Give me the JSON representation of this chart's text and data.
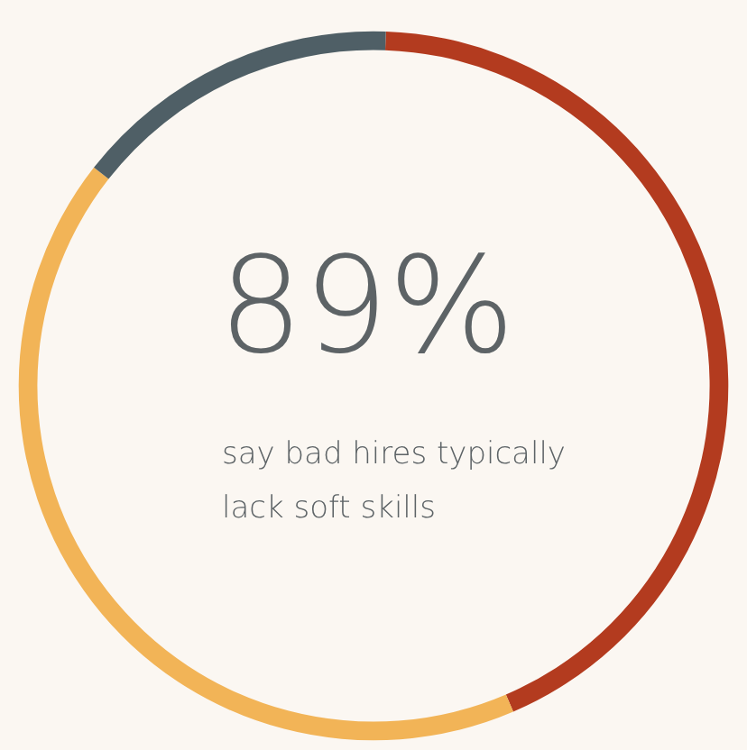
{
  "chart_data": {
    "type": "donut",
    "title": "89%",
    "subtitle": "say bad hires typically lack soft skills",
    "categories": [
      null,
      null,
      null
    ],
    "values": [
      43,
      42,
      15
    ],
    "colors": [
      "#b33b1f",
      "#f2b457",
      "#4f5f66"
    ]
  }
}
